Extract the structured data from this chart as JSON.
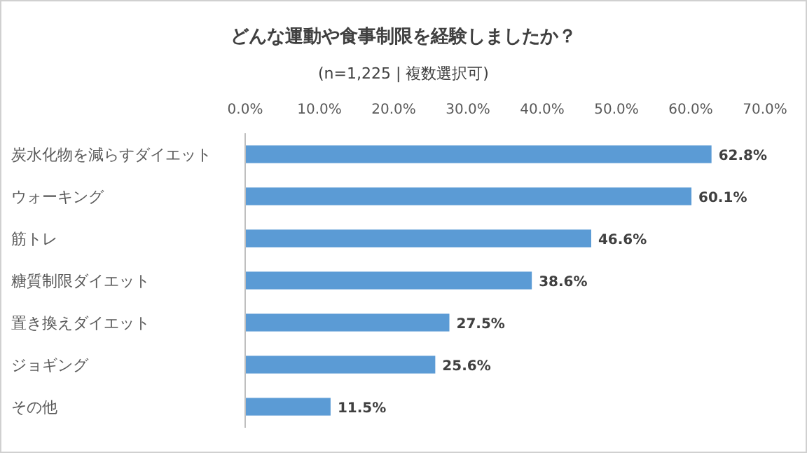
{
  "chart_data": {
    "type": "bar",
    "orientation": "horizontal",
    "title": "どんな運動や食事制限を経験しましたか？",
    "subtitle": "(n=1,225 | 複数選択可)",
    "categories": [
      "炭水化物を減らすダイエット",
      "ウォーキング",
      "筋トレ",
      "糖質制限ダイエット",
      "置き換えダイエット",
      "ジョギング",
      "その他"
    ],
    "values": [
      62.8,
      60.1,
      46.6,
      38.6,
      27.5,
      25.6,
      11.5
    ],
    "value_labels": [
      "62.8%",
      "60.1%",
      "46.6%",
      "38.6%",
      "27.5%",
      "25.6%",
      "11.5%"
    ],
    "color": "#5b9bd5",
    "xlim": [
      0,
      70
    ],
    "xticks": [
      {
        "value": 0,
        "label": "0.0%"
      },
      {
        "value": 10,
        "label": "10.0%"
      },
      {
        "value": 20,
        "label": "20.0%"
      },
      {
        "value": 30,
        "label": "30.0%"
      },
      {
        "value": 40,
        "label": "40.0%"
      },
      {
        "value": 50,
        "label": "50.0%"
      },
      {
        "value": 60,
        "label": "60.0%"
      },
      {
        "value": 70,
        "label": "70.0%"
      }
    ],
    "grid": false
  }
}
